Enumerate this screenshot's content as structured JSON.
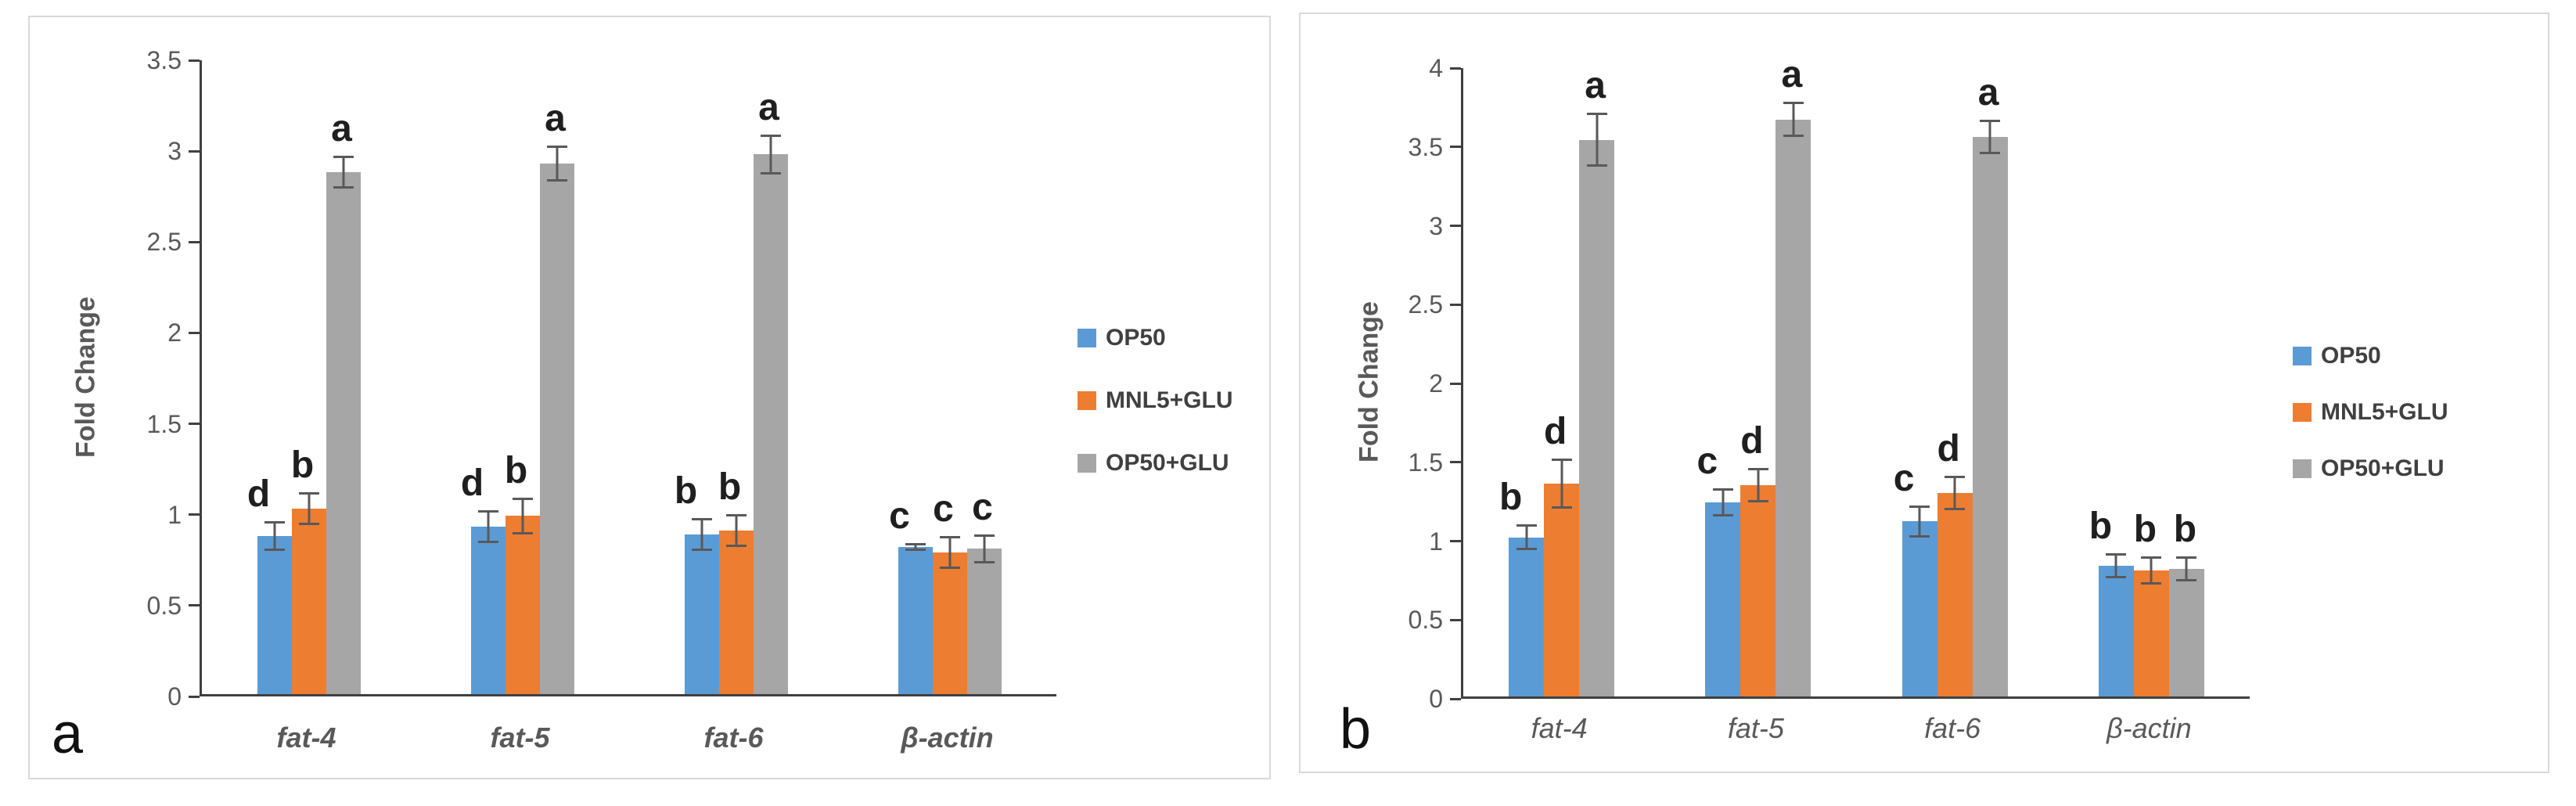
{
  "figure": {
    "background": "#ffffff",
    "panel_border_color": "#d9d9d9",
    "axis_color": "#404040",
    "error_bar_color": "#595959",
    "text_color": "#595959",
    "panels": [
      {
        "label": "a"
      },
      {
        "label": "b"
      }
    ]
  },
  "chart_data": [
    {
      "type": "bar",
      "panel_label": "a",
      "title": "",
      "xlabel": "",
      "ylabel": "Fold Change",
      "ylim": [
        0,
        3.5
      ],
      "yticks": [
        "0",
        "0.5",
        "1",
        "1.5",
        "2",
        "2.5",
        "3",
        "3.5"
      ],
      "grid": false,
      "legend_position": "right",
      "categories": [
        "fat-4",
        "fat-5",
        "fat-6",
        "β-actin"
      ],
      "series": [
        {
          "name": "OP50",
          "color": "#5B9BD5",
          "values": [
            0.87,
            0.92,
            0.88,
            0.81
          ],
          "errors": [
            0.08,
            0.09,
            0.09,
            0.02
          ],
          "letters": [
            "d",
            "d",
            "b",
            "c"
          ]
        },
        {
          "name": "MNL5+GLU",
          "color": "#ED7D31",
          "values": [
            1.02,
            0.98,
            0.9,
            0.78
          ],
          "errors": [
            0.09,
            0.1,
            0.09,
            0.09
          ],
          "letters": [
            "b",
            "b",
            "b",
            "c"
          ]
        },
        {
          "name": "OP50+GLU",
          "color": "#A6A6A6",
          "values": [
            2.87,
            2.92,
            2.97,
            0.8
          ],
          "errors": [
            0.09,
            0.1,
            0.11,
            0.08
          ],
          "letters": [
            "a",
            "a",
            "a",
            "c"
          ]
        }
      ]
    },
    {
      "type": "bar",
      "panel_label": "b",
      "title": "",
      "xlabel": "",
      "ylabel": "Fold Change",
      "ylim": [
        0,
        4
      ],
      "yticks": [
        "0",
        "0.5",
        "1",
        "1.5",
        "2",
        "2.5",
        "3",
        "3.5",
        "4"
      ],
      "grid": false,
      "legend_position": "right",
      "categories": [
        "fat-4",
        "fat-5",
        "fat-6",
        "β-actin"
      ],
      "series": [
        {
          "name": "OP50",
          "color": "#5B9BD5",
          "values": [
            1.01,
            1.23,
            1.11,
            0.83
          ],
          "errors": [
            0.08,
            0.09,
            0.1,
            0.08
          ],
          "letters": [
            "b",
            "c",
            "c",
            "b"
          ]
        },
        {
          "name": "MNL5+GLU",
          "color": "#ED7D31",
          "values": [
            1.35,
            1.34,
            1.29,
            0.8
          ],
          "errors": [
            0.16,
            0.11,
            0.11,
            0.09
          ],
          "letters": [
            "d",
            "d",
            "d",
            "b"
          ]
        },
        {
          "name": "OP50+GLU",
          "color": "#A6A6A6",
          "values": [
            3.53,
            3.66,
            3.55,
            0.81
          ],
          "errors": [
            0.17,
            0.11,
            0.11,
            0.08
          ],
          "letters": [
            "a",
            "a",
            "a",
            "b"
          ]
        }
      ]
    }
  ]
}
